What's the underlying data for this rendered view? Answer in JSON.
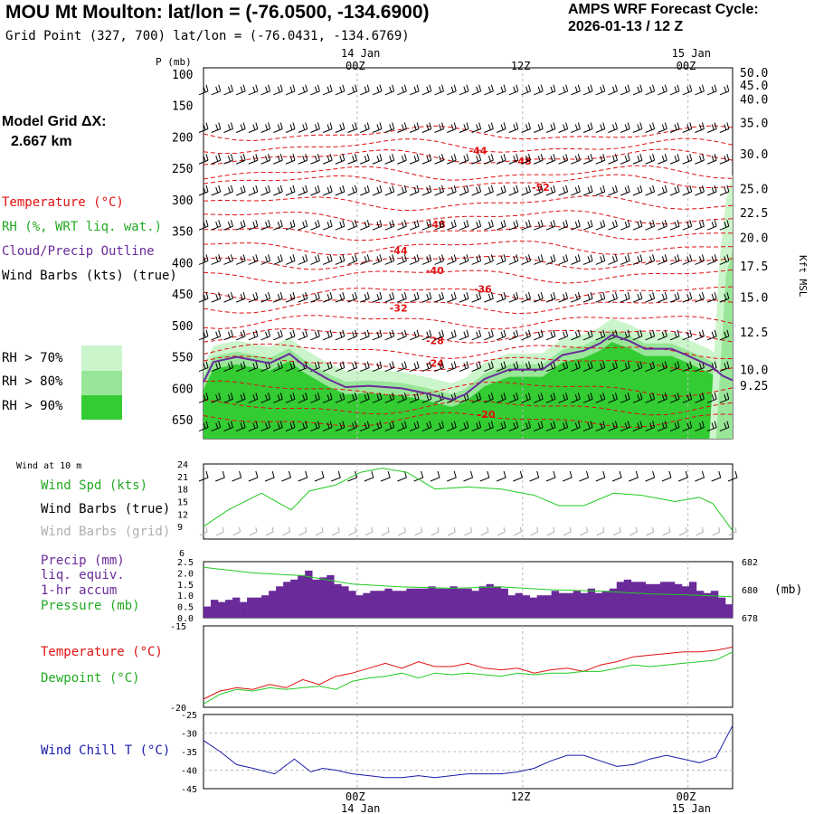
{
  "header": {
    "title": "MOU Mt Moulton:  lat/lon = (-76.0500, -134.6900)",
    "subtitle": "Grid Point (327, 700) lat/lon = (-76.0431, -134.6769)",
    "cycle_line1": "AMPS WRF Forecast Cycle:",
    "cycle_line2": "2026-01-13 / 12  Z",
    "grid_label": "Model Grid ΔX:",
    "grid_value": "2.667 km"
  },
  "legend": {
    "temperature": "Temperature (°C)",
    "rh": "RH (%, WRT liq. wat.)",
    "cloud": "Cloud/Precip Outline",
    "wind": "Wind Barbs (kts) (true)",
    "rh70": "RH > 70%",
    "rh80": "RH > 80%",
    "rh90": "RH > 90%",
    "wind10m": "Wind at 10 m",
    "wspd": "Wind Spd (kts)",
    "wbtrue": "Wind Barbs (true)",
    "wbgrid": "Wind Barbs (grid)",
    "precip1": "Precip (mm)",
    "precip2": "liq. equiv.",
    "precip3": "1-hr accum",
    "pressure": "Pressure (mb)",
    "temp2": "Temperature (°C)",
    "dew": "Dewpoint (°C)",
    "chill": "Wind Chill T (°C)"
  },
  "colors": {
    "red": "#e01010",
    "green": "#22cc22",
    "purple": "#6a2a9a",
    "blue": "#1a1aaa",
    "rh70": "#ccf5cc",
    "rh80": "#99e699",
    "rh90": "#33cc33",
    "gray": "#b0b0b0"
  },
  "chart_data": [
    {
      "type": "heatmap",
      "name": "cross-section",
      "xlabel": "time",
      "ylabel_left": "P (mb)",
      "ylabel_right": "Kft MSL",
      "xlim": [
        0,
        32
      ],
      "ylim": [
        680,
        90
      ],
      "top_ticks": [
        {
          "x": 9.3,
          "label": "00Z",
          "date": "14 Jan"
        },
        {
          "x": 19.3,
          "label": "12Z",
          "date": ""
        },
        {
          "x": 29.3,
          "label": "00Z",
          "date": "15 Jan"
        }
      ],
      "p_ticks": [
        100,
        150,
        200,
        250,
        300,
        350,
        400,
        450,
        500,
        550,
        600,
        650
      ],
      "height_ticks": [
        {
          "p": 97,
          "label": "50.0"
        },
        {
          "p": 117,
          "label": "45.0"
        },
        {
          "p": 140,
          "label": "40.0"
        },
        {
          "p": 177,
          "label": "35.0"
        },
        {
          "p": 227,
          "label": "30.0"
        },
        {
          "p": 282,
          "label": "25.0"
        },
        {
          "p": 320,
          "label": "22.5"
        },
        {
          "p": 360,
          "label": "20.0"
        },
        {
          "p": 405,
          "label": "17.5"
        },
        {
          "p": 455,
          "label": "15.0"
        },
        {
          "p": 510,
          "label": "12.5"
        },
        {
          "p": 570,
          "label": "10.0"
        },
        {
          "p": 595,
          "label": "9.25"
        }
      ],
      "barb_levels": [
        130,
        190,
        240,
        290,
        345,
        400,
        460,
        520,
        570,
        620,
        665
      ],
      "temp_labels": [
        {
          "x": 16.6,
          "p": 222,
          "label": "-44"
        },
        {
          "x": 19.3,
          "p": 238,
          "label": "-48"
        },
        {
          "x": 20.4,
          "p": 280,
          "label": "-52"
        },
        {
          "x": 14.1,
          "p": 339,
          "label": "-48"
        },
        {
          "x": 11.8,
          "p": 381,
          "label": "-44"
        },
        {
          "x": 14.0,
          "p": 412,
          "label": "-40"
        },
        {
          "x": 16.9,
          "p": 442,
          "label": "-36"
        },
        {
          "x": 11.8,
          "p": 472,
          "label": "-32"
        },
        {
          "x": 14.0,
          "p": 524,
          "label": "-28"
        },
        {
          "x": 14.0,
          "p": 560,
          "label": "-24"
        },
        {
          "x": 17.1,
          "p": 641,
          "label": "-20"
        }
      ],
      "cloud_outline": [
        [
          0,
          590
        ],
        [
          0.6,
          558
        ],
        [
          2,
          550
        ],
        [
          4,
          560
        ],
        [
          5.2,
          545
        ],
        [
          6,
          562
        ],
        [
          7.5,
          585
        ],
        [
          8.6,
          598
        ],
        [
          10,
          596
        ],
        [
          12,
          600
        ],
        [
          13.5,
          608
        ],
        [
          15,
          618
        ],
        [
          15.8,
          610
        ],
        [
          17,
          585
        ],
        [
          18.5,
          570
        ],
        [
          20.5,
          570
        ],
        [
          21.7,
          547
        ],
        [
          23,
          540
        ],
        [
          24,
          528
        ],
        [
          24.7,
          515
        ],
        [
          25.8,
          525
        ],
        [
          26.7,
          537
        ],
        [
          28.3,
          537
        ],
        [
          29.3,
          548
        ],
        [
          30.7,
          565
        ],
        [
          31.4,
          580
        ],
        [
          32,
          587
        ]
      ]
    },
    {
      "type": "line",
      "name": "wind speed 10 m",
      "ylabel": "kts",
      "ylim": [
        6,
        24
      ],
      "yticks": [
        9,
        12,
        15,
        18,
        21,
        24
      ],
      "x": [
        0,
        1.5,
        3.5,
        5.3,
        6.4,
        8,
        9.5,
        10.8,
        12.3,
        14,
        16,
        18,
        20,
        21.5,
        23,
        24.8,
        26.5,
        28.5,
        30,
        30.8,
        32
      ],
      "values": [
        9,
        13,
        17,
        13,
        17.5,
        19,
        22,
        23,
        22,
        18,
        18.5,
        18,
        16.5,
        14,
        14,
        17,
        16.5,
        15,
        16,
        14.5,
        8
      ]
    },
    {
      "type": "bar",
      "name": "precip 1-hr accum (mm)",
      "ylim": [
        0,
        2.5
      ],
      "yticks": [
        0,
        0.5,
        1,
        1.5,
        2,
        2.5
      ],
      "values": [
        0.5,
        0.8,
        0.7,
        0.8,
        0.9,
        0.7,
        0.9,
        0.9,
        1.0,
        1.2,
        1.4,
        1.6,
        1.7,
        1.9,
        2.1,
        1.7,
        1.8,
        1.9,
        1.5,
        1.4,
        1.2,
        1.0,
        1.1,
        1.2,
        1.2,
        1.3,
        1.2,
        1.2,
        1.3,
        1.3,
        1.3,
        1.4,
        1.3,
        1.3,
        1.4,
        1.3,
        1.3,
        1.2,
        1.4,
        1.5,
        1.4,
        1.3,
        1.0,
        1.1,
        1.0,
        0.9,
        1.0,
        1.0,
        1.2,
        1.1,
        1.1,
        1.2,
        1.1,
        1.3,
        1.1,
        1.2,
        1.3,
        1.6,
        1.7,
        1.6,
        1.6,
        1.5,
        1.5,
        1.6,
        1.6,
        1.5,
        1.4,
        1.6,
        1.2,
        1.1,
        1.2,
        0.9,
        0.6
      ]
    },
    {
      "type": "line",
      "name": "pressure (mb)",
      "ylim": [
        678,
        682
      ],
      "yticks": [
        678,
        680,
        682
      ],
      "x": [
        0,
        3,
        6,
        9,
        12,
        15,
        18,
        21,
        24,
        27,
        30,
        32
      ],
      "values": [
        681.6,
        681.2,
        681.0,
        680.4,
        680.2,
        680.1,
        680.2,
        680.0,
        679.9,
        679.7,
        679.6,
        679.5
      ]
    },
    {
      "type": "line",
      "name": "temperature / dewpoint (°C)",
      "ylim": [
        -20,
        -15
      ],
      "yticks": [
        -20,
        -15
      ],
      "series": [
        {
          "name": "Temperature",
          "x": [
            0,
            1,
            2,
            3,
            4,
            5,
            6,
            7,
            8,
            9,
            10,
            11,
            12,
            13,
            14,
            15,
            16,
            17,
            18,
            19,
            20,
            21,
            22,
            23,
            24,
            25,
            26,
            27,
            28,
            29,
            30,
            31,
            32
          ],
          "values": [
            -19.5,
            -19.0,
            -18.8,
            -18.9,
            -18.6,
            -18.8,
            -18.3,
            -18.6,
            -18.1,
            -17.9,
            -17.6,
            -17.3,
            -17.6,
            -17.2,
            -17.5,
            -17.5,
            -17.3,
            -17.6,
            -17.7,
            -17.6,
            -17.9,
            -17.7,
            -17.6,
            -17.8,
            -17.4,
            -17.2,
            -16.9,
            -16.8,
            -16.7,
            -16.6,
            -16.6,
            -16.5,
            -16.3
          ]
        },
        {
          "name": "Dewpoint",
          "x": [
            0,
            1,
            2,
            3,
            4,
            5,
            6,
            7,
            8,
            9,
            10,
            11,
            12,
            13,
            14,
            15,
            16,
            17,
            18,
            19,
            20,
            21,
            22,
            23,
            24,
            25,
            26,
            27,
            28,
            29,
            30,
            31,
            32
          ],
          "values": [
            -19.8,
            -19.2,
            -18.9,
            -19.0,
            -18.8,
            -18.9,
            -18.8,
            -18.7,
            -18.9,
            -18.4,
            -18.2,
            -18.1,
            -17.9,
            -18.2,
            -17.9,
            -18.0,
            -17.9,
            -18.0,
            -18.1,
            -17.9,
            -18.0,
            -17.9,
            -17.9,
            -17.8,
            -17.8,
            -17.6,
            -17.4,
            -17.5,
            -17.4,
            -17.3,
            -17.2,
            -17.1,
            -16.6
          ]
        }
      ]
    },
    {
      "type": "line",
      "name": "wind chill T (°C)",
      "ylim": [
        -45,
        -25
      ],
      "yticks": [
        -45,
        -40,
        -35,
        -30,
        -25
      ],
      "x": [
        0,
        1,
        2,
        3,
        4.3,
        5.5,
        6.5,
        7.2,
        8,
        9,
        10,
        11,
        12,
        13,
        14,
        15,
        16,
        17,
        18,
        19,
        20,
        21,
        22,
        23,
        24,
        25,
        26,
        27,
        28,
        29,
        30,
        31,
        32
      ],
      "values": [
        -32,
        -35,
        -38.5,
        -39.5,
        -41,
        -37,
        -40.5,
        -39.5,
        -40,
        -41,
        -41.5,
        -42,
        -42,
        -41.5,
        -42,
        -41.5,
        -41,
        -41,
        -41,
        -40.5,
        -39.5,
        -37.5,
        -36,
        -36,
        -37.5,
        -39,
        -38.5,
        -37,
        -36,
        -37,
        -38,
        -36.5,
        -28
      ]
    },
    {
      "type": "axis",
      "name": "bottom time axis",
      "labels": [
        {
          "x": 9.3,
          "label": "00Z",
          "date": "14 Jan"
        },
        {
          "x": 19.3,
          "label": "12Z",
          "date": ""
        },
        {
          "x": 29.3,
          "label": "00Z",
          "date": "15 Jan"
        }
      ]
    }
  ]
}
